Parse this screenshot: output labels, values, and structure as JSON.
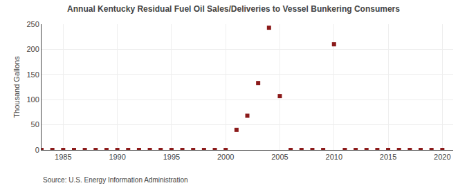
{
  "chart_data": {
    "type": "scatter",
    "title": "Annual Kentucky Residual Fuel Oil Sales/Deliveries to Vessel Bunkering Consumers",
    "ylabel": "Thousand Gallons",
    "source": "Source: U.S. Energy Information Administration",
    "x": [
      1983,
      1984,
      1985,
      1986,
      1987,
      1988,
      1989,
      1990,
      1991,
      1992,
      1993,
      1994,
      1995,
      1996,
      1997,
      1998,
      1999,
      2000,
      2001,
      2002,
      2003,
      2004,
      2005,
      2006,
      2007,
      2008,
      2009,
      2010,
      2011,
      2012,
      2013,
      2014,
      2015,
      2016,
      2017,
      2018,
      2019,
      2020
    ],
    "values": [
      0,
      0,
      0,
      0,
      0,
      0,
      0,
      0,
      0,
      0,
      0,
      0,
      0,
      0,
      0,
      0,
      0,
      0,
      40,
      68,
      133,
      243,
      107,
      0,
      0,
      0,
      0,
      210,
      0,
      0,
      0,
      0,
      0,
      0,
      0,
      0,
      0,
      0
    ],
    "color": "#8b1a1a",
    "marker": "square",
    "xlim": [
      1983,
      2021
    ],
    "xticks": [
      1985,
      1990,
      1995,
      2000,
      2005,
      2010,
      2015,
      2020
    ],
    "ylim": [
      0,
      250
    ],
    "yticks": [
      0,
      50,
      100,
      150,
      200,
      250
    ],
    "grid": true
  }
}
